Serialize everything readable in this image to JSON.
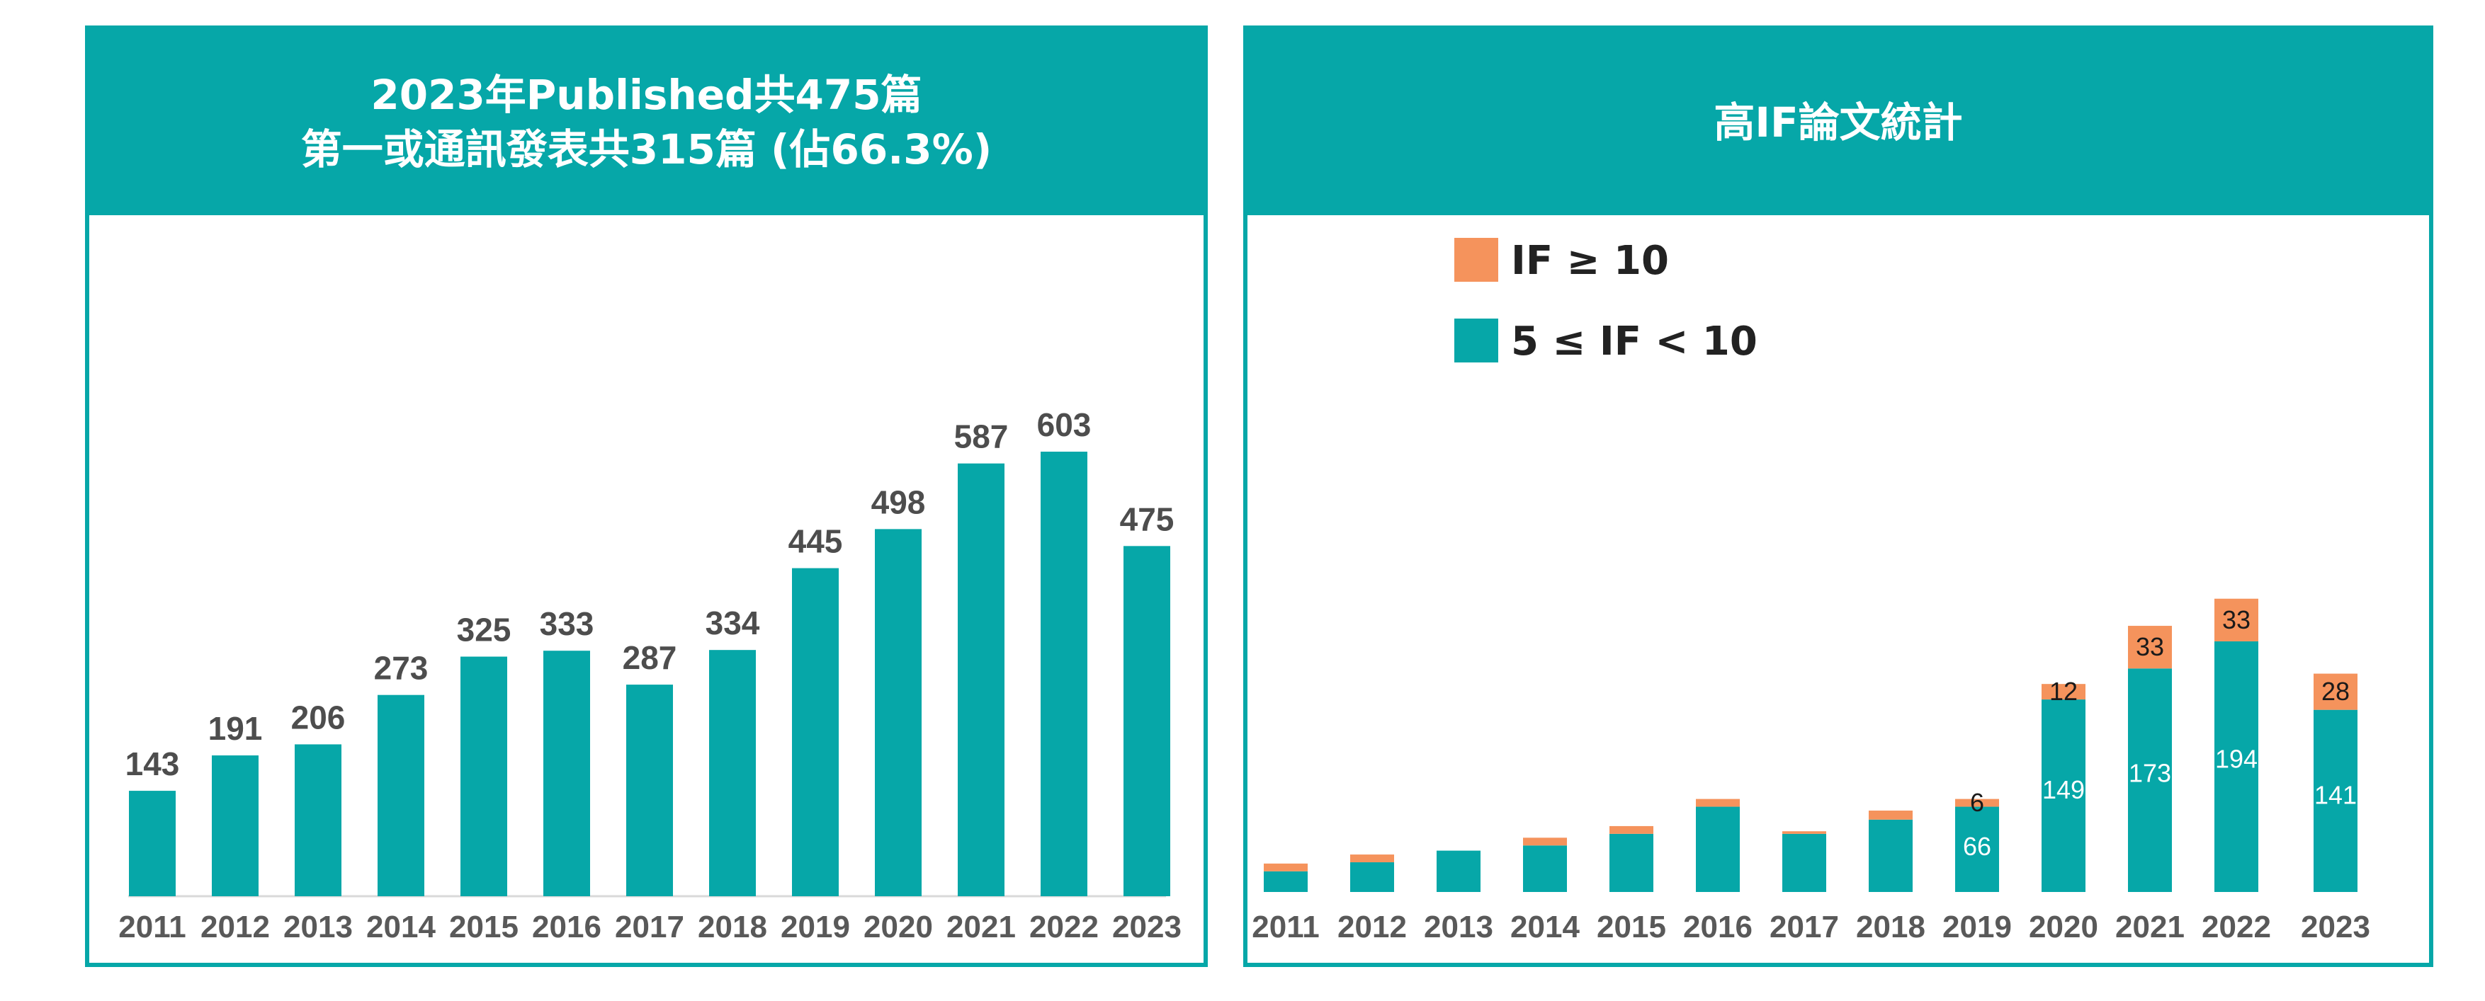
{
  "colors": {
    "teal": "#06a7a8",
    "orange": "#f5935c",
    "axis": "#d9d9d9"
  },
  "left_panel": {
    "title_line1": "2023年Published共475篇",
    "title_line2": "第一或通訊發表共315篇 (佔66.3%)"
  },
  "right_panel": {
    "title": "高IF論文統計",
    "legend": [
      {
        "label": "IF ≥ 10",
        "color": "#f5935c"
      },
      {
        "label": "5 ≤ IF < 10",
        "color": "#06a7a8"
      }
    ]
  },
  "chart_data": [
    {
      "type": "bar",
      "title": "2023年Published共475篇 第一或通訊發表共315篇 (佔66.3%)",
      "categories": [
        "2011",
        "2012",
        "2013",
        "2014",
        "2015",
        "2016",
        "2017",
        "2018",
        "2019",
        "2020",
        "2021",
        "2022",
        "2023"
      ],
      "values": [
        143,
        191,
        206,
        273,
        325,
        333,
        287,
        334,
        445,
        498,
        587,
        603,
        475
      ],
      "ylim": [
        0,
        700
      ],
      "data_labels": true,
      "grid": false
    },
    {
      "type": "bar",
      "stacked": true,
      "title": "高IF論文統計",
      "categories": [
        "2011",
        "2012",
        "2013",
        "2014",
        "2015",
        "2016",
        "2017",
        "2018",
        "2019",
        "2020",
        "2021",
        "2022",
        "2023"
      ],
      "series": [
        {
          "name": "5 ≤ IF < 10",
          "color": "#06a7a8",
          "values": [
            16,
            23,
            32,
            36,
            45,
            66,
            45,
            56,
            66,
            149,
            173,
            194,
            141
          ],
          "labels": [
            "",
            "",
            "",
            "",
            "",
            "",
            "",
            "",
            "66",
            "149",
            "173",
            "194",
            "141"
          ]
        },
        {
          "name": "IF ≥ 10",
          "color": "#f5935c",
          "values": [
            6,
            6,
            0,
            6,
            6,
            6,
            2,
            7,
            6,
            12,
            33,
            33,
            28
          ],
          "labels": [
            "",
            "",
            "",
            "",
            "",
            "",
            "",
            "",
            "6",
            "12",
            "33",
            "33",
            "28"
          ]
        }
      ],
      "legend_position": "top-left",
      "data_labels": true,
      "grid": false
    }
  ]
}
